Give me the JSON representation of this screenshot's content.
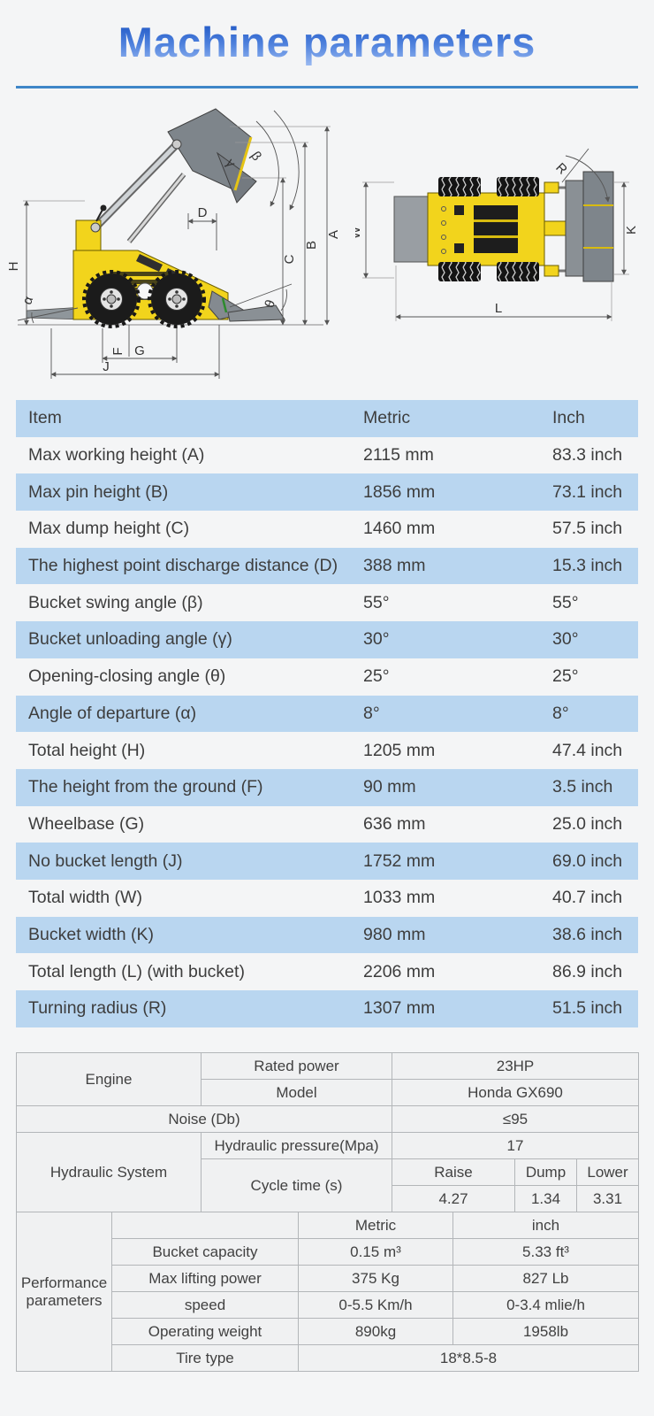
{
  "page": {
    "background": "#f4f5f6"
  },
  "header": {
    "title": "Machine parameters",
    "title_gradient_top": "#1d55c4",
    "title_gradient_bottom": "#9dbcf2",
    "divider_color": "#3e86c8"
  },
  "diagram": {
    "machine_yellow": "#f2d41c",
    "machine_gray": "#8a9095",
    "side_view": {
      "labels": {
        "A": "A",
        "B": "B",
        "C": "C",
        "D": "D",
        "H": "H",
        "F": "F",
        "G": "G",
        "J": "J",
        "alpha": "α",
        "beta": "β",
        "gamma": "γ",
        "theta": "θ"
      }
    },
    "top_view": {
      "labels": {
        "W": "W",
        "K": "K",
        "L": "L",
        "R": "R"
      }
    }
  },
  "spec_table": {
    "stripe_color": "#b9d6f0",
    "columns": [
      "Item",
      "Metric",
      "Inch"
    ],
    "rows": [
      [
        "Max working height (A)",
        "2115 mm",
        "83.3 inch"
      ],
      [
        "Max pin height  (B)",
        "1856 mm",
        "73.1 inch"
      ],
      [
        "Max dump height (C)",
        "1460 mm",
        "57.5 inch"
      ],
      [
        "The highest point discharge distance (D)",
        "388 mm",
        "15.3 inch"
      ],
      [
        "Bucket swing angle (β)",
        "55°",
        "55°"
      ],
      [
        "Bucket unloading angle (γ)",
        "30°",
        "30°"
      ],
      [
        "Opening-closing angle (θ)",
        "25°",
        "25°"
      ],
      [
        "Angle of departure (α)",
        "8°",
        "8°"
      ],
      [
        "Total height  (H)",
        "1205 mm",
        "47.4 inch"
      ],
      [
        "The height from the ground (F)",
        "90 mm",
        "3.5 inch"
      ],
      [
        "Wheelbase  (G)",
        "636 mm",
        "25.0 inch"
      ],
      [
        "No bucket length (J)",
        "1752 mm",
        "69.0 inch"
      ],
      [
        "Total width (W)",
        "1033 mm",
        "40.7 inch"
      ],
      [
        "Bucket width (K)",
        "980 mm",
        "38.6 inch"
      ],
      [
        "Total length (L)  (with bucket)",
        "2206 mm",
        "86.9 inch"
      ],
      [
        "Turning radius (R)",
        "1307 mm",
        "51.5 inch"
      ]
    ]
  },
  "detail_table": {
    "engine_label": "Engine",
    "rated_power_label": "Rated power",
    "rated_power_value": "23HP",
    "model_label": "Model",
    "model_value": "Honda GX690",
    "noise_label": "Noise (Db)",
    "noise_value": "≤95",
    "hydraulic_label": "Hydraulic System",
    "pressure_label": "Hydraulic pressure(Mpa)",
    "pressure_value": "17",
    "cycle_label": "Cycle time (s)",
    "cycle_columns": [
      "Raise",
      "Dump",
      "Lower"
    ],
    "cycle_values": [
      "4.27",
      "1.34",
      "3.31"
    ],
    "performance_label": "Performance parameters",
    "perf_columns": [
      "Metric",
      "inch"
    ],
    "perf_rows": [
      [
        "Bucket capacity",
        "0.15 m³",
        "5.33 ft³"
      ],
      [
        "Max lifting power",
        "375 Kg",
        "827 Lb"
      ],
      [
        "speed",
        "0-5.5 Km/h",
        "0-3.4 mlie/h"
      ],
      [
        "Operating weight",
        "890kg",
        "1958lb"
      ]
    ],
    "tire_label": "Tire type",
    "tire_value": "18*8.5-8"
  }
}
